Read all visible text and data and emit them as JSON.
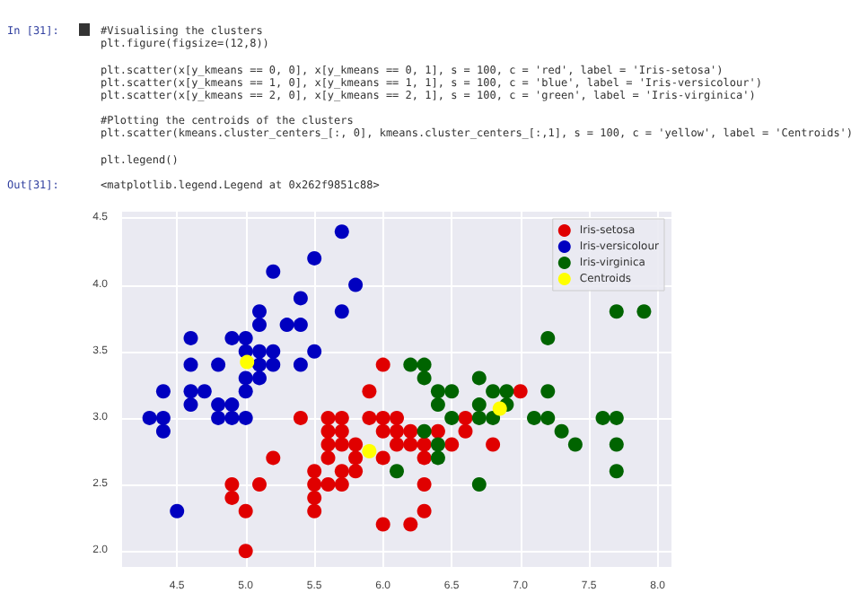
{
  "chart_data": {
    "type": "scatter",
    "annotations": [
      "In [31]:",
      "#Visualising the clusters",
      "plt.figure(figsize=(12,8))",
      "plt.scatter(x[y_kmeans == 0, 0], x[y_kmeans == 0, 1], s = 100, c = 'red', label = 'Iris-setosa')",
      "plt.scatter(x[y_kmeans == 1, 0], x[y_kmeans == 1, 1], s = 100, c = 'blue', label = 'Iris-versicolour')",
      "plt.scatter(x[y_kmeans == 2, 0], x[y_kmeans == 2, 1], s = 100, c = 'green', label = 'Iris-virginica')",
      "#Plotting the centroids of the clusters",
      "plt.scatter(kmeans.cluster_centers_[:, 0], kmeans.cluster_centers_[:,1], s = 100, c = 'yellow', label = 'Centroids')",
      "plt.legend()",
      "Out[31]:",
      "<matplotlib.legend.Legend at 0x262f9851c88>"
    ],
    "series": [
      {
        "name": "Iris-setosa",
        "color": "#e00000",
        "x": [
          6.0,
          5.9,
          7.0,
          5.4,
          5.6,
          5.7,
          5.9,
          6.0,
          6.1,
          6.6,
          5.6,
          5.7,
          6.0,
          6.1,
          6.2,
          6.4,
          6.6,
          5.6,
          5.7,
          5.8,
          6.1,
          6.2,
          6.3,
          6.5,
          6.8,
          5.2,
          5.6,
          5.8,
          6.0,
          6.3,
          5.5,
          5.7,
          5.8,
          4.9,
          5.1,
          5.5,
          5.6,
          5.7,
          6.3,
          4.9,
          5.5,
          5.0,
          5.5,
          6.3,
          6.0,
          6.2,
          5.0
        ],
        "values": [
          3.4,
          3.2,
          3.2,
          3.0,
          3.0,
          3.0,
          3.0,
          3.0,
          3.0,
          3.0,
          2.9,
          2.9,
          2.9,
          2.9,
          2.9,
          2.9,
          2.9,
          2.8,
          2.8,
          2.8,
          2.8,
          2.8,
          2.8,
          2.8,
          2.8,
          2.7,
          2.7,
          2.7,
          2.7,
          2.7,
          2.6,
          2.6,
          2.6,
          2.5,
          2.5,
          2.5,
          2.5,
          2.5,
          2.5,
          2.4,
          2.4,
          2.3,
          2.3,
          2.3,
          2.2,
          2.2,
          2.0
        ]
      },
      {
        "name": "Iris-versicolour",
        "color": "#0000c0",
        "x": [
          5.7,
          5.5,
          5.2,
          5.8,
          5.4,
          5.1,
          5.7,
          5.1,
          5.3,
          5.4,
          4.6,
          4.9,
          5.0,
          5.0,
          5.1,
          5.2,
          5.5,
          4.6,
          4.8,
          5.0,
          5.1,
          5.2,
          5.4,
          5.0,
          5.1,
          4.4,
          4.6,
          4.7,
          5.0,
          4.6,
          4.8,
          4.9,
          4.3,
          4.4,
          4.8,
          4.9,
          5.0,
          4.4,
          4.5
        ],
        "values": [
          4.4,
          4.2,
          4.1,
          4.0,
          3.9,
          3.8,
          3.8,
          3.7,
          3.7,
          3.7,
          3.6,
          3.6,
          3.6,
          3.5,
          3.5,
          3.5,
          3.5,
          3.4,
          3.4,
          null,
          3.4,
          3.4,
          3.4,
          3.3,
          3.3,
          3.2,
          3.2,
          3.2,
          3.2,
          3.1,
          3.1,
          3.1,
          3.0,
          3.0,
          3.0,
          3.0,
          3.0,
          2.9,
          2.3
        ]
      },
      {
        "name": "Iris-virginica",
        "color": "#006400",
        "x": [
          7.7,
          7.9,
          7.2,
          6.2,
          6.3,
          6.3,
          6.7,
          6.4,
          6.5,
          6.8,
          6.9,
          7.2,
          6.4,
          6.7,
          6.9,
          6.5,
          6.7,
          6.8,
          7.1,
          7.2,
          7.6,
          7.7,
          6.3,
          7.3,
          6.4,
          7.4,
          7.7,
          6.4,
          6.1,
          7.7,
          6.7
        ],
        "values": [
          3.8,
          3.8,
          3.6,
          3.4,
          3.4,
          3.3,
          3.3,
          3.2,
          3.2,
          3.2,
          3.2,
          3.2,
          3.1,
          3.1,
          3.1,
          3.0,
          3.0,
          3.0,
          3.0,
          3.0,
          3.0,
          3.0,
          2.9,
          2.9,
          2.8,
          2.8,
          2.8,
          2.7,
          2.6,
          2.6,
          2.5
        ]
      },
      {
        "name": "Centroids",
        "color": "#ffff00",
        "x": [
          5.01,
          5.9,
          6.85
        ],
        "values": [
          3.42,
          2.75,
          3.07
        ]
      }
    ],
    "xlim": [
      4.1,
      8.1
    ],
    "ylim": [
      1.88,
      4.55
    ],
    "xticks": [
      {
        "value": 4.5,
        "label": "4.5"
      },
      {
        "value": 5,
        "label": "5.0"
      },
      {
        "value": 5.5,
        "label": "5.5"
      },
      {
        "value": 6,
        "label": "6.0"
      },
      {
        "value": 6.5,
        "label": "6.5"
      },
      {
        "value": 7,
        "label": "7.0"
      },
      {
        "value": 7.5,
        "label": "7.5"
      },
      {
        "value": 8,
        "label": "8.0"
      }
    ],
    "yticks": [
      {
        "value": 2,
        "label": "2.0"
      },
      {
        "value": 2.5,
        "label": "2.5"
      },
      {
        "value": 3,
        "label": "3.0"
      },
      {
        "value": 3.5,
        "label": "3.5"
      },
      {
        "value": 4,
        "label": "4.0"
      },
      {
        "value": 4.5,
        "label": "4.5"
      }
    ],
    "grid": true,
    "legend": "top right",
    "marker": "circle"
  }
}
